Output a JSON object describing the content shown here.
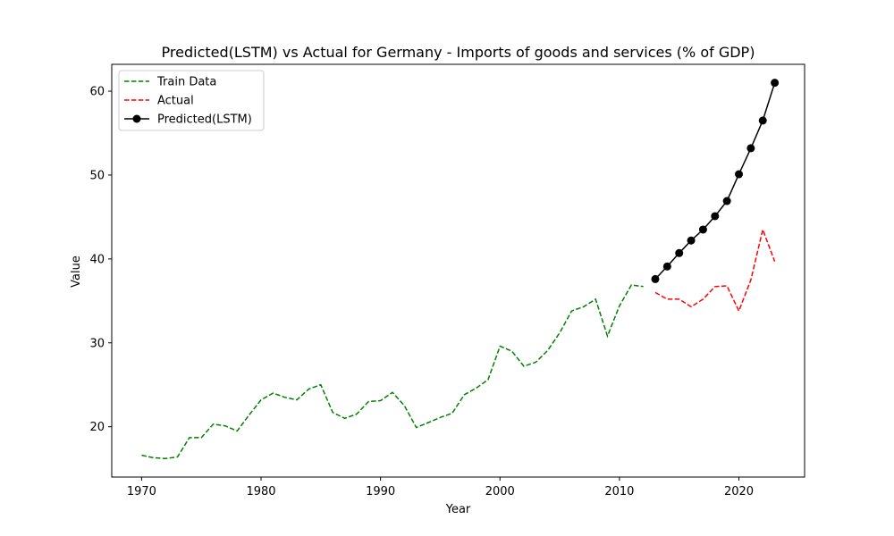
{
  "chart_data": {
    "type": "line",
    "title": "Predicted(LSTM) vs Actual for Germany - Imports of goods and services (% of GDP)",
    "xlabel": "Year",
    "ylabel": "Value",
    "xlim": [
      1967.5,
      2025.5
    ],
    "ylim": [
      14,
      63.2
    ],
    "xticks": [
      1970,
      1980,
      1990,
      2000,
      2010,
      2020
    ],
    "yticks": [
      20,
      30,
      40,
      50,
      60
    ],
    "grid": false,
    "legend_position": "top-left",
    "series": [
      {
        "name": "Train Data",
        "color": "#008000",
        "style": "dashed",
        "marker": "none",
        "x": [
          1970,
          1971,
          1972,
          1973,
          1974,
          1975,
          1976,
          1977,
          1978,
          1979,
          1980,
          1981,
          1982,
          1983,
          1984,
          1985,
          1986,
          1987,
          1988,
          1989,
          1990,
          1991,
          1992,
          1993,
          1994,
          1995,
          1996,
          1997,
          1998,
          1999,
          2000,
          2001,
          2002,
          2003,
          2004,
          2005,
          2006,
          2007,
          2008,
          2009,
          2010,
          2011,
          2012
        ],
        "y": [
          16.6,
          16.3,
          16.2,
          16.4,
          18.7,
          18.7,
          20.3,
          20.1,
          19.5,
          21.4,
          23.2,
          24.0,
          23.5,
          23.2,
          24.5,
          25.0,
          21.7,
          21.0,
          21.5,
          23.0,
          23.1,
          24.1,
          22.5,
          19.9,
          20.5,
          21.1,
          21.6,
          23.8,
          24.6,
          25.6,
          29.6,
          29.0,
          27.2,
          27.7,
          29.1,
          31.2,
          33.8,
          34.3,
          35.2,
          30.8,
          34.4,
          36.9,
          36.7
        ]
      },
      {
        "name": "Actual",
        "color": "#ff0000",
        "style": "dashed",
        "marker": "none",
        "x": [
          2013,
          2014,
          2015,
          2016,
          2017,
          2018,
          2019,
          2020,
          2021,
          2022,
          2023
        ],
        "y": [
          36.0,
          35.2,
          35.2,
          34.3,
          35.2,
          36.7,
          36.8,
          33.8,
          37.5,
          43.5,
          39.7
        ]
      },
      {
        "name": "Predicted(LSTM)",
        "color": "#000000",
        "style": "solid",
        "marker": "circle",
        "x": [
          2013,
          2014,
          2015,
          2016,
          2017,
          2018,
          2019,
          2020,
          2021,
          2022,
          2023
        ],
        "y": [
          37.6,
          39.1,
          40.7,
          42.2,
          43.5,
          45.1,
          46.9,
          50.1,
          53.2,
          56.5,
          61.0
        ]
      }
    ]
  }
}
